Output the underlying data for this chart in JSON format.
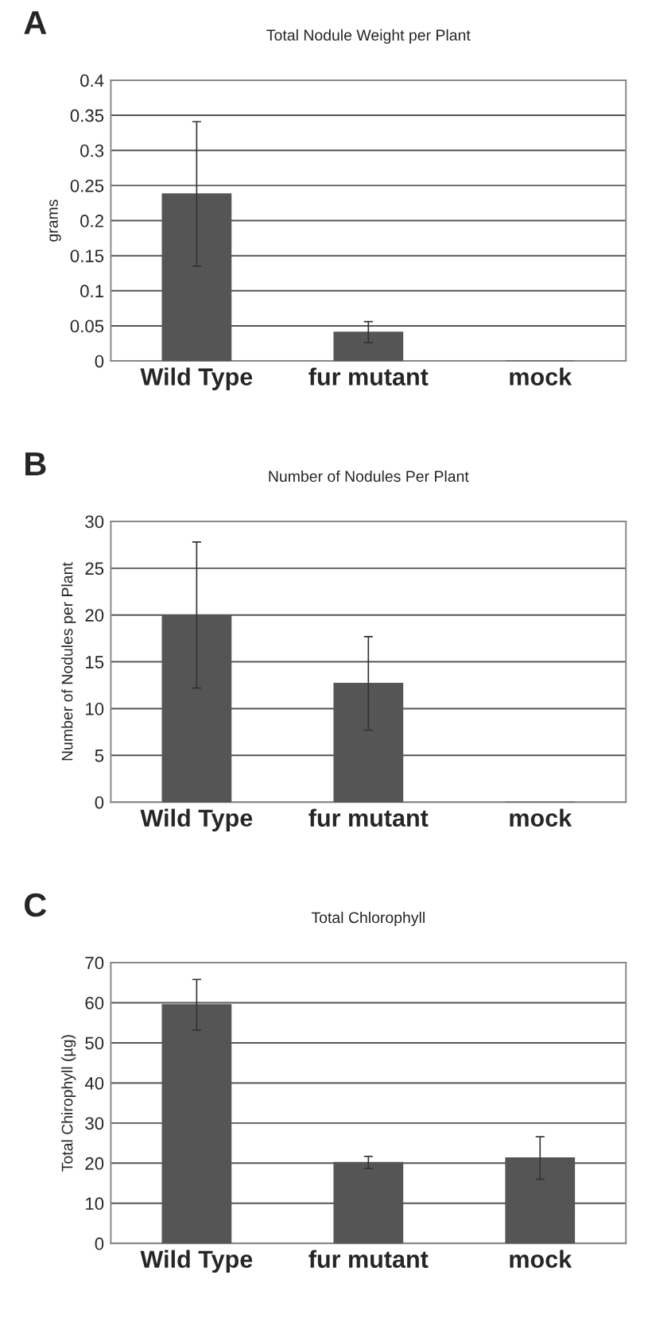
{
  "chart_data": [
    {
      "type": "bar",
      "title": "Total Nodule Weight per Plant",
      "ylabel": "grams",
      "annotations": [
        "A"
      ],
      "categories": [
        "Wild Type",
        "fur mutant",
        "mock"
      ],
      "values": [
        0.238,
        0.041,
        0
      ],
      "errors": [
        0.103,
        0.015,
        null
      ],
      "color": "#555555",
      "ylim": [
        0,
        0.4
      ],
      "yticks": [
        {
          "value": 0,
          "label": "0"
        },
        0.05,
        0.1,
        0.15,
        0.2,
        0.25,
        0.3,
        0.35,
        0.4
      ],
      "grid": "y"
    },
    {
      "type": "bar",
      "title": "Number of Nodules Per Plant",
      "ylabel": "Number of Nodules per Plant",
      "annotations": [
        "B"
      ],
      "categories": [
        "Wild Type",
        "fur mutant",
        "mock"
      ],
      "values": [
        20,
        12.7,
        0
      ],
      "errors": [
        7.8,
        5,
        null
      ],
      "color": "#555555",
      "ylim": [
        0,
        30
      ],
      "yticks": [
        0,
        5,
        10,
        15,
        20,
        25,
        30
      ],
      "grid": "y"
    },
    {
      "type": "bar",
      "title": "Total Chlorophyll",
      "ylabel": "Total Chirophyll (µg)",
      "annotations": [
        "C"
      ],
      "categories": [
        "Wild Type",
        "fur mutant",
        "mock"
      ],
      "values": [
        59.5,
        20.2,
        21.3
      ],
      "errors": [
        6.3,
        1.5,
        5.3
      ],
      "color": "#555555",
      "ylim": [
        0,
        70
      ],
      "yticks": [
        0,
        10,
        20,
        30,
        40,
        50,
        60,
        70
      ],
      "grid": "y"
    }
  ]
}
